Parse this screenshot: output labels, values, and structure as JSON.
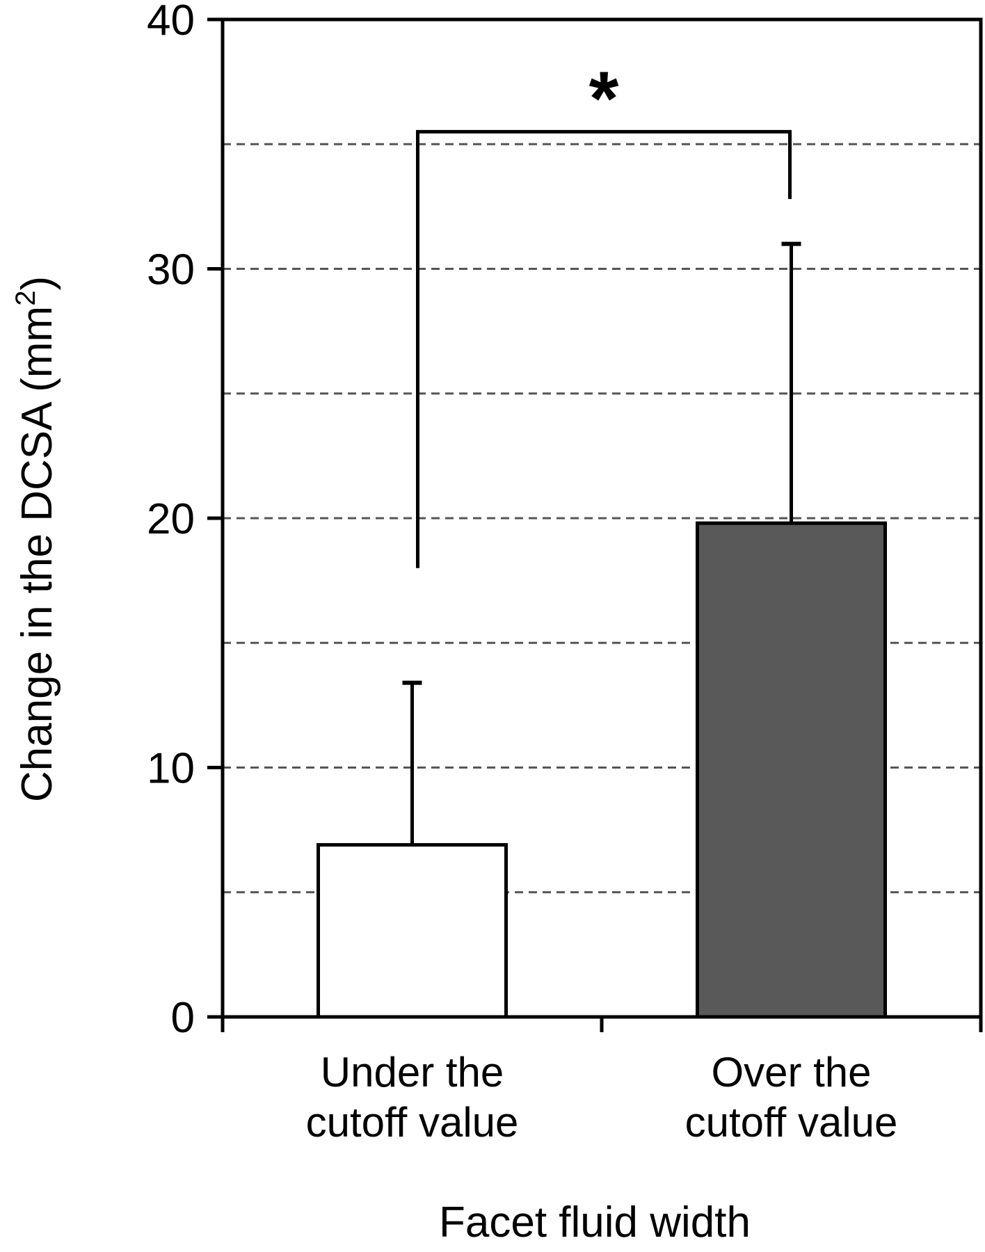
{
  "chart_data": {
    "type": "bar",
    "categories": [
      [
        "Under the",
        "cutoff value"
      ],
      [
        "Over the",
        "cutoff value"
      ]
    ],
    "values": [
      6.9,
      19.8
    ],
    "error_upper": [
      13.4,
      31.0
    ],
    "colors": [
      "#ffffff",
      "#595959"
    ],
    "ylabel": "Change in the DCSA (mm",
    "ylabel_superscript": "2",
    "ylabel_suffix": ")",
    "xlabel": "Facet fluid width",
    "ylim": [
      0,
      40
    ],
    "yticks": [
      0,
      10,
      20,
      30,
      40
    ],
    "gridlines": [
      5,
      10,
      15,
      20,
      25,
      30,
      35
    ],
    "grid": "dashed horizontal",
    "significance": {
      "marker": "*",
      "bracket_top": 35.5,
      "left_leg_bottom": 18,
      "right_leg_bottom": 32.8
    }
  }
}
